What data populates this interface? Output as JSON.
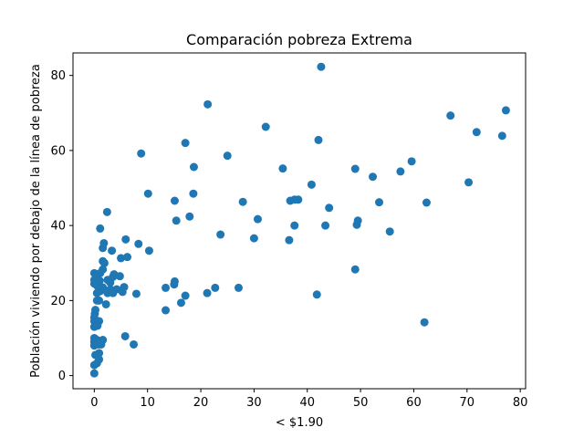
{
  "chart_data": {
    "type": "scatter",
    "title": "Comparación pobreza Extrema",
    "xlabel": "< $1.90",
    "ylabel": "Población viviendo por debajo de la línea de pobreza",
    "xlim": [
      -4.0,
      81.0
    ],
    "ylim": [
      -3.5,
      86.0
    ],
    "xticks": [
      0,
      10,
      20,
      30,
      40,
      50,
      60,
      70,
      80
    ],
    "yticks": [
      0,
      20,
      40,
      60,
      80
    ],
    "grid": false,
    "legend": "none",
    "marker_color": "#1f77b4",
    "points": [
      [
        0,
        0.6
      ],
      [
        0,
        2.8
      ],
      [
        0.2,
        5.5
      ],
      [
        0.5,
        3.3
      ],
      [
        0.9,
        4.3
      ],
      [
        0.9,
        6.0
      ],
      [
        0,
        8.0
      ],
      [
        0,
        9.0
      ],
      [
        0,
        10.0
      ],
      [
        0.5,
        9.5
      ],
      [
        1.3,
        8.3
      ],
      [
        1.6,
        9.5
      ],
      [
        0.8,
        8.3
      ],
      [
        0,
        13.0
      ],
      [
        0,
        14.5
      ],
      [
        0,
        15.5
      ],
      [
        0.1,
        16.5
      ],
      [
        0.2,
        17.5
      ],
      [
        0.6,
        13.3
      ],
      [
        0.9,
        14.5
      ],
      [
        0.5,
        20.0
      ],
      [
        0.5,
        22.0
      ],
      [
        0.9,
        20.0
      ],
      [
        1.1,
        22.5
      ],
      [
        1.6,
        23.5
      ],
      [
        2.2,
        19.0
      ],
      [
        2.5,
        22.0
      ],
      [
        0,
        24.5
      ],
      [
        0,
        25.5
      ],
      [
        0,
        27.3
      ],
      [
        0.4,
        26.0
      ],
      [
        0.5,
        24.0
      ],
      [
        1.0,
        25.3
      ],
      [
        1.1,
        27.3
      ],
      [
        1.6,
        28.3
      ],
      [
        1.9,
        30.0
      ],
      [
        1.6,
        30.5
      ],
      [
        2.5,
        25.5
      ],
      [
        3.0,
        24.8
      ],
      [
        3.5,
        26.3
      ],
      [
        3.7,
        27.0
      ],
      [
        4.8,
        26.5
      ],
      [
        3.0,
        23.0
      ],
      [
        4.2,
        23.0
      ],
      [
        5.3,
        22.3
      ],
      [
        5.6,
        23.6
      ],
      [
        3.5,
        22.0
      ],
      [
        3.3,
        33.3
      ],
      [
        1.6,
        34.0
      ],
      [
        1.8,
        35.3
      ],
      [
        1.1,
        39.2
      ],
      [
        2.4,
        43.6
      ],
      [
        5.0,
        31.3
      ],
      [
        6.2,
        31.6
      ],
      [
        5.9,
        36.3
      ],
      [
        8.3,
        35.1
      ],
      [
        10.3,
        33.3
      ],
      [
        7.9,
        21.8
      ],
      [
        5.8,
        10.5
      ],
      [
        7.4,
        8.3
      ],
      [
        8.8,
        59.2
      ],
      [
        10.1,
        48.5
      ],
      [
        13.4,
        17.4
      ],
      [
        13.4,
        23.4
      ],
      [
        15.0,
        24.3
      ],
      [
        15.1,
        25.1
      ],
      [
        15.1,
        46.6
      ],
      [
        15.4,
        41.3
      ],
      [
        16.3,
        19.4
      ],
      [
        17.1,
        21.3
      ],
      [
        17.1,
        62.0
      ],
      [
        17.9,
        42.4
      ],
      [
        18.6,
        48.5
      ],
      [
        18.7,
        55.6
      ],
      [
        21.2,
        22.0
      ],
      [
        21.3,
        72.3
      ],
      [
        22.7,
        23.4
      ],
      [
        23.7,
        37.6
      ],
      [
        25.0,
        58.6
      ],
      [
        27.1,
        23.4
      ],
      [
        27.9,
        46.3
      ],
      [
        30.0,
        36.6
      ],
      [
        30.7,
        41.7
      ],
      [
        32.2,
        66.3
      ],
      [
        35.4,
        55.2
      ],
      [
        36.6,
        36.1
      ],
      [
        36.8,
        46.6
      ],
      [
        37.6,
        40.0
      ],
      [
        37.6,
        46.9
      ],
      [
        38.3,
        46.9
      ],
      [
        40.8,
        50.9
      ],
      [
        41.8,
        21.6
      ],
      [
        42.1,
        62.8
      ],
      [
        42.6,
        82.3
      ],
      [
        43.4,
        40.0
      ],
      [
        44.1,
        44.7
      ],
      [
        49.0,
        28.3
      ],
      [
        49.0,
        55.1
      ],
      [
        49.3,
        40.2
      ],
      [
        49.5,
        41.3
      ],
      [
        52.3,
        53.0
      ],
      [
        53.5,
        46.2
      ],
      [
        55.5,
        38.4
      ],
      [
        57.5,
        54.4
      ],
      [
        59.6,
        57.1
      ],
      [
        62.0,
        14.2
      ],
      [
        62.4,
        46.1
      ],
      [
        66.9,
        69.3
      ],
      [
        70.3,
        51.5
      ],
      [
        71.8,
        64.9
      ],
      [
        76.6,
        63.9
      ],
      [
        77.3,
        70.7
      ]
    ]
  }
}
